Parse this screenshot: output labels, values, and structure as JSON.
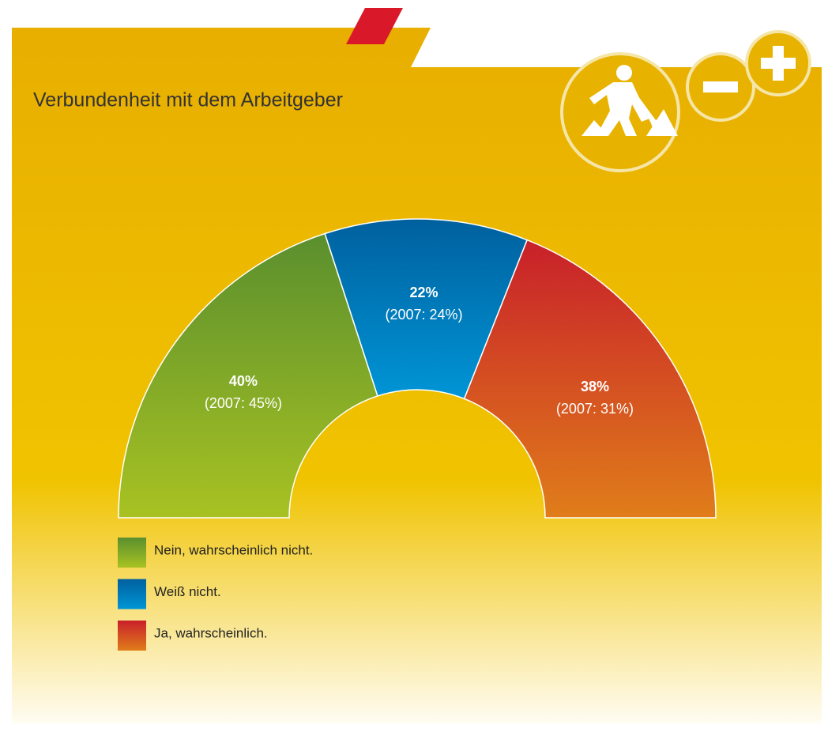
{
  "chart_data": {
    "type": "pie",
    "title": "Verbundenheit mit dem Arbeitgeber",
    "categories": [
      "Nein, wahrscheinlich nicht.",
      "Weiß nicht.",
      "Ja, wahrscheinlich."
    ],
    "values": [
      40,
      22,
      38
    ],
    "value_labels": [
      "40%",
      "22%",
      "38%"
    ],
    "comparison_labels": [
      "(2007: 45%)",
      "(2007: 24%)",
      "(2007: 31%)"
    ],
    "colors": [
      "#5a8f2e",
      "#00609e",
      "#c8202a"
    ]
  }
}
